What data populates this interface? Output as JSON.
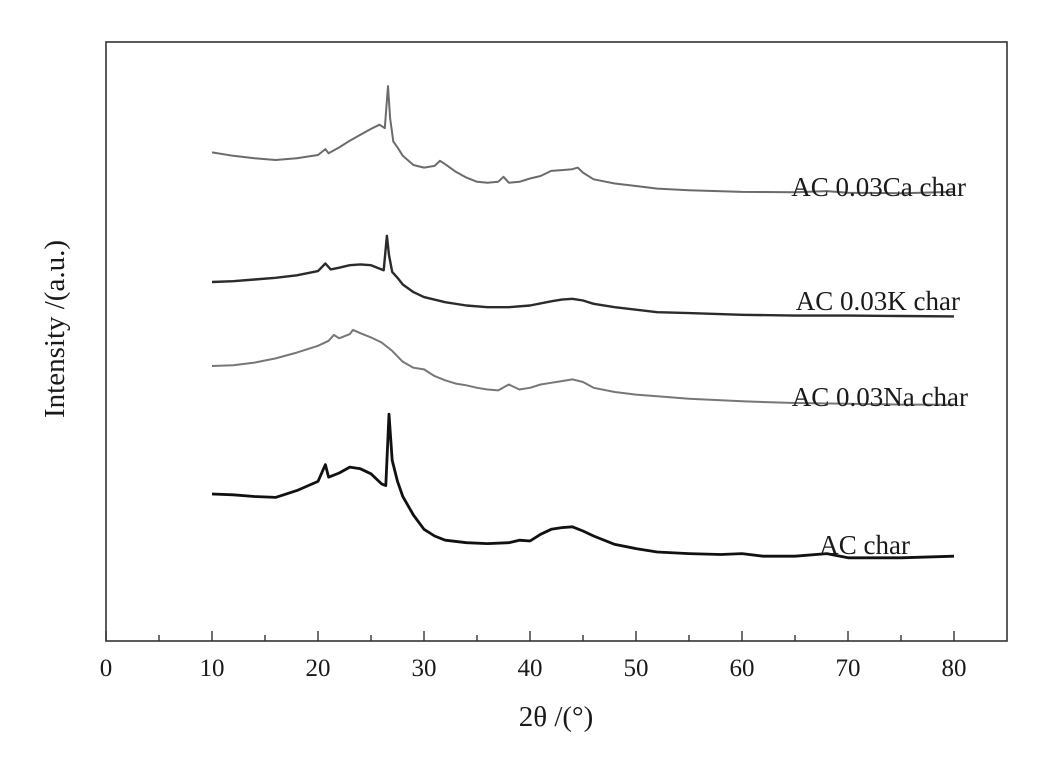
{
  "chart_data": {
    "type": "line",
    "title": "",
    "xlabel": "2θ /(°)",
    "ylabel": "Intensity /(a.u.)",
    "xlim": [
      0,
      85
    ],
    "xticks": [
      0,
      10,
      20,
      30,
      40,
      50,
      60,
      70,
      80
    ],
    "y_tick_labels": false,
    "grid": false,
    "legend": "inline labels at right of each curve",
    "series": [
      {
        "name": "AC 0.03Ca char",
        "color": "#6b6b6b",
        "x": [
          10,
          12,
          14,
          16,
          18,
          20,
          20.7,
          21,
          22,
          23,
          24,
          25,
          25.8,
          26.3,
          26.6,
          26.8,
          27.1,
          27.5,
          28,
          29,
          30,
          31,
          31.5,
          32,
          33,
          34,
          35,
          36,
          37,
          37.5,
          38,
          39,
          40,
          41,
          42,
          43,
          44,
          44.5,
          45,
          46,
          48,
          50,
          52,
          55,
          60,
          65,
          68,
          70,
          75,
          80
        ],
        "y": [
          0.9,
          0.5,
          0.2,
          0.0,
          0.2,
          0.6,
          1.3,
          0.8,
          1.5,
          2.3,
          3.0,
          3.7,
          4.2,
          3.8,
          8.8,
          5.0,
          2.2,
          1.5,
          0.5,
          -0.6,
          -0.9,
          -0.7,
          -0.1,
          -0.5,
          -1.4,
          -2.1,
          -2.6,
          -2.7,
          -2.6,
          -2.0,
          -2.7,
          -2.6,
          -2.2,
          -1.9,
          -1.3,
          -1.2,
          -1.1,
          -0.9,
          -1.5,
          -2.3,
          -2.8,
          -3.1,
          -3.4,
          -3.6,
          -3.8,
          -3.85,
          -3.7,
          -3.9,
          -3.95,
          -3.8
        ]
      },
      {
        "name": "AC 0.03K char",
        "color": "#2b2b2b",
        "x": [
          10,
          12,
          14,
          16,
          18,
          20,
          20.7,
          21.2,
          22,
          23,
          24,
          25,
          25.8,
          26.2,
          26.5,
          26.7,
          27,
          27.5,
          28,
          29,
          30,
          32,
          34,
          36,
          37,
          38,
          40,
          42,
          43,
          44,
          45,
          46,
          48,
          50,
          52,
          55,
          60,
          65,
          70,
          75,
          80
        ],
        "y": [
          0.0,
          0.1,
          0.3,
          0.5,
          0.8,
          1.3,
          2.2,
          1.5,
          1.7,
          2.0,
          2.1,
          2.0,
          1.6,
          1.4,
          5.5,
          3.2,
          1.2,
          0.5,
          -0.3,
          -1.2,
          -1.8,
          -2.4,
          -2.8,
          -3.0,
          -3.0,
          -3.0,
          -2.8,
          -2.3,
          -2.1,
          -2.0,
          -2.2,
          -2.6,
          -3.0,
          -3.3,
          -3.6,
          -3.7,
          -3.9,
          -4.0,
          -4.0,
          -4.05,
          -4.1
        ]
      },
      {
        "name": "AC 0.03Na char",
        "color": "#777777",
        "x": [
          10,
          12,
          14,
          16,
          18,
          20,
          21,
          21.5,
          22,
          23,
          23.3,
          24,
          25,
          26,
          27,
          28,
          29,
          30,
          31,
          32,
          33,
          34,
          35,
          36,
          37,
          38,
          39,
          40,
          41,
          42,
          43,
          44,
          45,
          46,
          48,
          50,
          52,
          55,
          60,
          65,
          70,
          75,
          80
        ],
        "y": [
          0.0,
          0.1,
          0.4,
          0.9,
          1.6,
          2.4,
          3.0,
          3.7,
          3.3,
          3.8,
          4.3,
          3.9,
          3.4,
          2.8,
          1.8,
          0.5,
          -0.2,
          -0.4,
          -1.2,
          -1.7,
          -2.1,
          -2.3,
          -2.6,
          -2.8,
          -2.9,
          -2.2,
          -2.8,
          -2.6,
          -2.2,
          -2.0,
          -1.8,
          -1.6,
          -1.9,
          -2.6,
          -3.1,
          -3.4,
          -3.6,
          -3.9,
          -4.2,
          -4.4,
          -4.5,
          -4.6,
          -4.6
        ]
      },
      {
        "name": "AC char",
        "color": "#111111",
        "x": [
          10,
          12,
          14,
          16,
          18,
          20,
          20.7,
          21,
          22,
          23,
          24,
          25,
          26,
          26.4,
          26.7,
          27,
          27.5,
          28,
          29,
          30,
          31,
          32,
          34,
          36,
          38,
          39,
          40,
          41,
          42,
          43,
          44,
          45,
          46,
          48,
          50,
          52,
          55,
          58,
          60,
          62,
          65,
          68,
          70,
          75,
          80
        ],
        "y": [
          0.0,
          -0.1,
          -0.3,
          -0.4,
          0.4,
          1.5,
          3.5,
          2.0,
          2.5,
          3.2,
          3.0,
          2.4,
          1.2,
          1.0,
          9.5,
          4.0,
          1.5,
          -0.3,
          -2.5,
          -4.2,
          -5.0,
          -5.5,
          -5.8,
          -5.9,
          -5.8,
          -5.5,
          -5.6,
          -4.8,
          -4.2,
          -4.0,
          -3.9,
          -4.4,
          -5.0,
          -6.0,
          -6.5,
          -6.9,
          -7.1,
          -7.2,
          -7.1,
          -7.4,
          -7.4,
          -7.1,
          -7.6,
          -7.6,
          -7.4
        ]
      }
    ]
  }
}
